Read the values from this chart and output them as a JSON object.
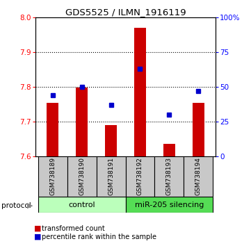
{
  "title": "GDS5525 / ILMN_1916119",
  "categories": [
    "GSM738189",
    "GSM738190",
    "GSM738191",
    "GSM738192",
    "GSM738193",
    "GSM738194"
  ],
  "bar_values": [
    7.754,
    7.798,
    7.69,
    7.97,
    7.635,
    7.754
  ],
  "percentile_values": [
    44,
    50,
    37,
    63,
    30,
    47
  ],
  "y_min": 7.6,
  "y_max": 8.0,
  "y_ticks": [
    7.6,
    7.7,
    7.8,
    7.9,
    8.0
  ],
  "right_y_ticks": [
    0,
    25,
    50,
    75,
    100
  ],
  "bar_color": "#cc0000",
  "dot_color": "#0000cc",
  "protocol_labels": [
    "control",
    "miR-205 silencing"
  ],
  "control_color": "#bbffbb",
  "silencing_color": "#55dd55",
  "cell_bg": "#c8c8c8",
  "legend_items": [
    "transformed count",
    "percentile rank within the sample"
  ]
}
